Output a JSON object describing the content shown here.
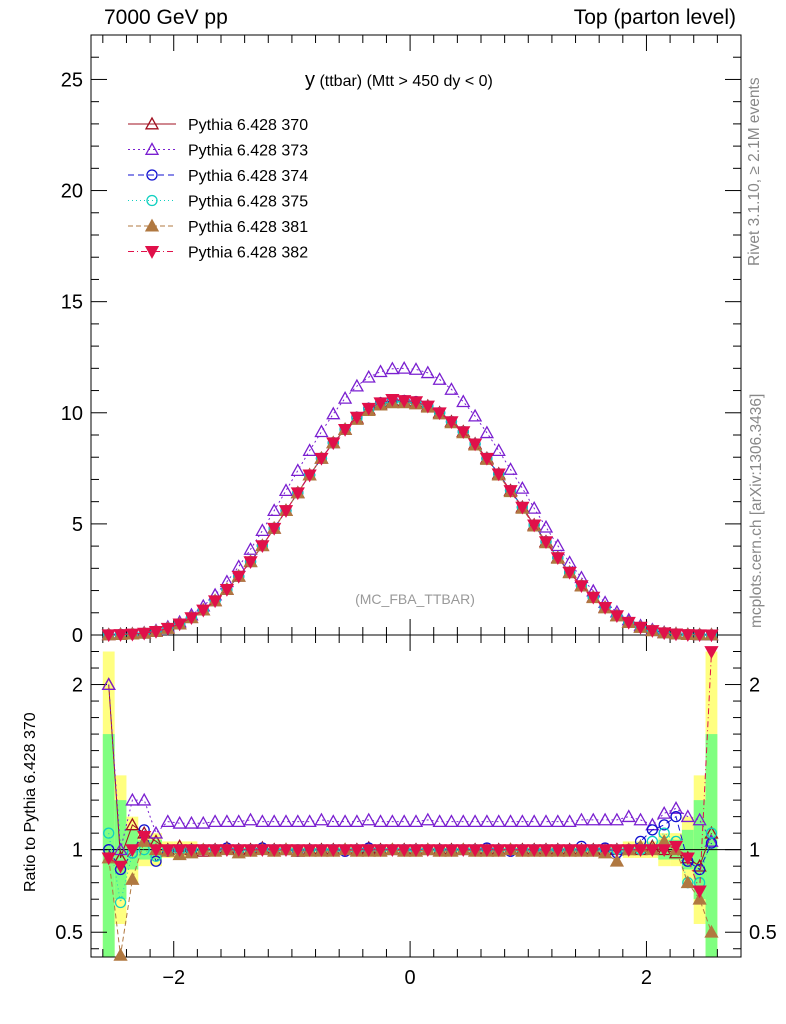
{
  "header": {
    "left": "7000 GeV pp",
    "right": "Top (parton level)"
  },
  "side_labels": {
    "rivet": "Rivet 3.1.10, ≥ 2.1M events",
    "mcplots": "mcplots.cern.ch [arXiv:1306.3436]"
  },
  "chart_data": {
    "type": "scatter",
    "title_main": "y",
    "title_rest": " (ttbar) (Mtt > 450 dy < 0)",
    "annotation": "(MC_FBA_TTBAR)",
    "xlabel": "",
    "ylabel_main": "",
    "ylabel_ratio": "Ratio to Pythia 6.428 370",
    "xlim": [
      -2.7,
      2.8
    ],
    "ylim_main": [
      0,
      27
    ],
    "ylim_ratio": [
      0.35,
      2.3
    ],
    "x_ticks": [
      "−2",
      "0",
      "2"
    ],
    "y_ticks_main": [
      "0",
      "5",
      "10",
      "15",
      "20",
      "25"
    ],
    "y_ticks_ratio": [
      "0.5",
      "1",
      "2"
    ],
    "legend_position": "top-left",
    "x": [
      -2.55,
      -2.45,
      -2.35,
      -2.25,
      -2.15,
      -2.05,
      -1.95,
      -1.85,
      -1.75,
      -1.65,
      -1.55,
      -1.45,
      -1.35,
      -1.25,
      -1.15,
      -1.05,
      -0.95,
      -0.85,
      -0.75,
      -0.65,
      -0.55,
      -0.45,
      -0.35,
      -0.25,
      -0.15,
      -0.05,
      0.05,
      0.15,
      0.25,
      0.35,
      0.45,
      0.55,
      0.65,
      0.75,
      0.85,
      0.95,
      1.05,
      1.15,
      1.25,
      1.35,
      1.45,
      1.55,
      1.65,
      1.75,
      1.85,
      1.95,
      2.05,
      2.15,
      2.25,
      2.35,
      2.45,
      2.55
    ],
    "series": [
      {
        "name": "Pythia 6.428 370",
        "color": "#a01020",
        "marker": "triangle-open",
        "dash": "",
        "values": [
          0.01,
          0.02,
          0.04,
          0.08,
          0.16,
          0.3,
          0.5,
          0.78,
          1.12,
          1.54,
          2.05,
          2.64,
          3.3,
          4.02,
          4.8,
          5.6,
          6.4,
          7.2,
          7.95,
          8.65,
          9.25,
          9.75,
          10.15,
          10.4,
          10.5,
          10.5,
          10.45,
          10.3,
          10.0,
          9.6,
          9.15,
          8.6,
          7.95,
          7.25,
          6.5,
          5.75,
          4.95,
          4.2,
          3.48,
          2.82,
          2.22,
          1.7,
          1.24,
          0.87,
          0.57,
          0.35,
          0.2,
          0.1,
          0.05,
          0.02,
          0.01,
          0.005
        ],
        "ratio": [
          2.0,
          0.95,
          1.15,
          1.1,
          1.05,
          1.0,
          1.02,
          1.0,
          0.99,
          1.0,
          1.01,
          1.0,
          1.0,
          1.01,
          1.0,
          1.0,
          0.99,
          1.0,
          1.0,
          1.0,
          1.0,
          1.0,
          1.01,
          1.0,
          1.0,
          1.0,
          1.0,
          1.0,
          1.0,
          1.0,
          1.0,
          1.0,
          1.0,
          1.0,
          1.0,
          1.0,
          1.0,
          1.0,
          1.0,
          1.0,
          1.0,
          1.0,
          1.0,
          1.0,
          1.0,
          1.0,
          1.02,
          1.0,
          0.98,
          0.95,
          0.9,
          1.1
        ]
      },
      {
        "name": "Pythia 6.428 373",
        "color": "#7a1fd0",
        "marker": "triangle-open",
        "dash": "2,3",
        "values": [
          0.02,
          0.03,
          0.05,
          0.1,
          0.2,
          0.36,
          0.58,
          0.9,
          1.3,
          1.8,
          2.4,
          3.08,
          3.85,
          4.7,
          5.6,
          6.5,
          7.4,
          8.3,
          9.15,
          9.95,
          10.65,
          11.2,
          11.6,
          11.85,
          11.98,
          12.0,
          11.95,
          11.8,
          11.5,
          11.05,
          10.5,
          9.85,
          9.1,
          8.3,
          7.45,
          6.6,
          5.7,
          4.85,
          4.02,
          3.26,
          2.58,
          1.98,
          1.46,
          1.03,
          0.68,
          0.42,
          0.24,
          0.12,
          0.06,
          0.025,
          0.012,
          0.006
        ],
        "ratio": [
          2.0,
          1.0,
          1.3,
          1.3,
          1.1,
          1.17,
          1.16,
          1.16,
          1.16,
          1.17,
          1.17,
          1.17,
          1.18,
          1.17,
          1.17,
          1.17,
          1.17,
          1.17,
          1.18,
          1.17,
          1.17,
          1.17,
          1.18,
          1.17,
          1.17,
          1.17,
          1.17,
          1.18,
          1.17,
          1.17,
          1.17,
          1.17,
          1.17,
          1.17,
          1.17,
          1.17,
          1.17,
          1.17,
          1.17,
          1.17,
          1.18,
          1.18,
          1.18,
          1.18,
          1.2,
          1.18,
          1.15,
          1.22,
          1.25,
          1.2,
          1.18,
          1.05
        ]
      },
      {
        "name": "Pythia 6.428 374",
        "color": "#1010d0",
        "marker": "circle-open",
        "dash": "6,4",
        "values": [
          0.01,
          0.02,
          0.04,
          0.08,
          0.16,
          0.3,
          0.5,
          0.78,
          1.12,
          1.54,
          2.05,
          2.64,
          3.3,
          4.02,
          4.8,
          5.6,
          6.4,
          7.2,
          7.95,
          8.65,
          9.25,
          9.8,
          10.2,
          10.45,
          10.55,
          10.55,
          10.5,
          10.3,
          10.0,
          9.6,
          9.15,
          8.6,
          7.95,
          7.25,
          6.5,
          5.75,
          4.95,
          4.2,
          3.48,
          2.82,
          2.22,
          1.7,
          1.24,
          0.87,
          0.57,
          0.35,
          0.2,
          0.1,
          0.05,
          0.02,
          0.01,
          0.005
        ],
        "ratio": [
          1.0,
          0.88,
          0.98,
          1.12,
          0.93,
          0.99,
          1.0,
          1.0,
          1.0,
          1.0,
          1.01,
          1.0,
          1.0,
          1.01,
          1.0,
          1.0,
          0.99,
          1.0,
          1.0,
          1.0,
          0.99,
          1.0,
          1.01,
          1.0,
          1.0,
          1.0,
          1.0,
          1.0,
          1.0,
          1.0,
          1.0,
          1.0,
          1.01,
          1.0,
          0.99,
          1.0,
          1.0,
          1.0,
          1.0,
          1.0,
          1.02,
          1.0,
          1.01,
          0.98,
          1.0,
          1.05,
          1.12,
          1.15,
          1.2,
          0.93,
          0.88,
          1.04
        ]
      },
      {
        "name": "Pythia 6.428 375",
        "color": "#10d0c0",
        "marker": "circle-open",
        "dash": "1,3",
        "values": [
          0.01,
          0.02,
          0.04,
          0.08,
          0.16,
          0.3,
          0.5,
          0.78,
          1.12,
          1.54,
          2.05,
          2.64,
          3.3,
          4.02,
          4.8,
          5.6,
          6.4,
          7.2,
          7.95,
          8.65,
          9.25,
          9.75,
          10.15,
          10.4,
          10.5,
          10.5,
          10.45,
          10.3,
          10.0,
          9.6,
          9.15,
          8.6,
          7.95,
          7.25,
          6.5,
          5.75,
          4.95,
          4.2,
          3.48,
          2.82,
          2.22,
          1.7,
          1.24,
          0.87,
          0.57,
          0.35,
          0.2,
          0.1,
          0.05,
          0.02,
          0.01,
          0.005
        ],
        "ratio": [
          1.1,
          0.68,
          0.98,
          1.0,
          0.96,
          1.0,
          1.0,
          1.0,
          1.0,
          1.0,
          1.0,
          1.0,
          1.0,
          1.0,
          1.0,
          1.0,
          1.0,
          1.0,
          1.0,
          1.0,
          1.0,
          1.0,
          1.0,
          1.0,
          1.0,
          1.0,
          1.0,
          1.0,
          1.0,
          1.0,
          1.0,
          1.0,
          1.0,
          1.0,
          1.0,
          1.0,
          1.0,
          1.0,
          1.0,
          1.0,
          1.0,
          1.0,
          1.0,
          1.0,
          1.0,
          1.0,
          1.05,
          1.1,
          1.05,
          0.8,
          0.8,
          1.1
        ]
      },
      {
        "name": "Pythia 6.428 381",
        "color": "#b07840",
        "marker": "triangle-filled",
        "dash": "5,3",
        "values": [
          0.01,
          0.02,
          0.04,
          0.08,
          0.16,
          0.3,
          0.5,
          0.78,
          1.12,
          1.54,
          2.05,
          2.64,
          3.3,
          4.02,
          4.8,
          5.6,
          6.4,
          7.2,
          7.95,
          8.65,
          9.25,
          9.7,
          10.1,
          10.35,
          10.45,
          10.45,
          10.4,
          10.25,
          9.95,
          9.55,
          9.1,
          8.55,
          7.9,
          7.2,
          6.45,
          5.7,
          4.9,
          4.15,
          3.45,
          2.8,
          2.2,
          1.68,
          1.22,
          0.86,
          0.56,
          0.34,
          0.19,
          0.1,
          0.05,
          0.02,
          0.01,
          0.005
        ],
        "ratio": [
          0.95,
          0.36,
          0.82,
          1.05,
          1.0,
          0.99,
          0.97,
          0.98,
          1.0,
          0.99,
          1.0,
          0.98,
          0.99,
          1.0,
          0.99,
          1.0,
          0.99,
          0.99,
          0.99,
          0.99,
          1.0,
          0.99,
          0.99,
          0.99,
          1.0,
          0.99,
          0.99,
          1.0,
          0.99,
          0.99,
          1.0,
          0.99,
          0.99,
          0.99,
          1.0,
          0.99,
          0.99,
          0.99,
          0.99,
          0.99,
          0.99,
          0.99,
          0.98,
          0.93,
          1.0,
          1.02,
          1.0,
          1.05,
          1.0,
          0.8,
          0.7,
          0.5
        ]
      },
      {
        "name": "Pythia 6.428 382",
        "color": "#e0104a",
        "marker": "triangle-down-filled",
        "dash": "6,3,1,3",
        "values": [
          0.01,
          0.02,
          0.04,
          0.08,
          0.16,
          0.3,
          0.5,
          0.78,
          1.12,
          1.54,
          2.05,
          2.64,
          3.3,
          4.02,
          4.8,
          5.6,
          6.4,
          7.2,
          7.95,
          8.65,
          9.25,
          9.8,
          10.2,
          10.45,
          10.6,
          10.55,
          10.5,
          10.3,
          10.0,
          9.6,
          9.15,
          8.6,
          7.95,
          7.25,
          6.5,
          5.75,
          4.95,
          4.2,
          3.48,
          2.82,
          2.22,
          1.7,
          1.24,
          0.87,
          0.57,
          0.35,
          0.2,
          0.1,
          0.05,
          0.02,
          0.01,
          0.005
        ],
        "ratio": [
          0.95,
          0.9,
          1.0,
          1.08,
          1.0,
          1.0,
          1.0,
          1.0,
          1.0,
          1.0,
          1.0,
          1.0,
          1.0,
          1.0,
          1.0,
          1.0,
          1.0,
          1.0,
          1.0,
          1.0,
          1.0,
          1.0,
          1.0,
          1.0,
          1.0,
          1.0,
          1.0,
          1.0,
          1.0,
          1.0,
          1.0,
          1.0,
          1.0,
          1.0,
          1.0,
          1.0,
          1.0,
          1.0,
          1.0,
          1.0,
          1.0,
          1.0,
          1.0,
          1.0,
          1.0,
          1.0,
          1.0,
          1.0,
          1.02,
          0.95,
          0.75,
          2.2
        ]
      }
    ],
    "band_colors": {
      "outer": "#ffff80",
      "inner": "#80ff80"
    }
  }
}
